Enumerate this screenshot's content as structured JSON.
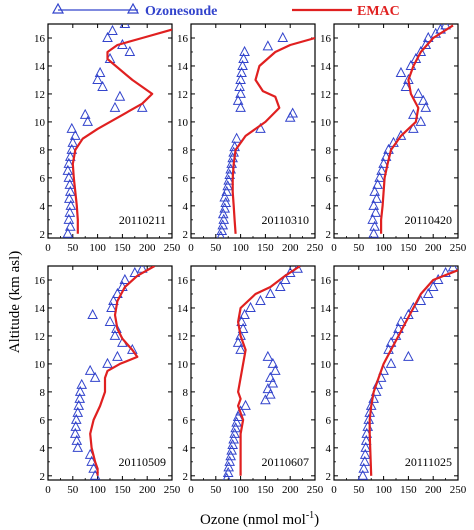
{
  "legend": {
    "ozonesonde_label": "Ozonesonde",
    "emac_label": "EMAC"
  },
  "axes": {
    "ylabel": "Altitude (km asl)",
    "xlabel_main": "Ozone (nmol mol",
    "xlabel_sup": "-1",
    "xlabel_end": ")"
  },
  "colors": {
    "ozonesonde": "#3344cc",
    "emac": "#e02020",
    "axis": "#000000"
  },
  "chart_data": {
    "type": "scatter",
    "layout": "2x3 small multiples",
    "xlim": [
      0,
      250
    ],
    "ylim": [
      1.7,
      17
    ],
    "xticks": [
      0,
      50,
      100,
      150,
      200,
      250
    ],
    "yticks": [
      2,
      4,
      6,
      8,
      10,
      12,
      14,
      16
    ],
    "xlabel": "Ozone (nmol mol-1)",
    "ylabel": "Altitude (km asl)",
    "series_styles": [
      {
        "name": "Ozonesonde",
        "marker": "open-triangle"
      },
      {
        "name": "EMAC",
        "line": "solid"
      }
    ],
    "panels": [
      {
        "label": "20110211",
        "ozonesonde": [
          [
            40,
            2.0
          ],
          [
            45,
            2.5
          ],
          [
            42,
            3.0
          ],
          [
            44,
            3.5
          ],
          [
            46,
            4.0
          ],
          [
            43,
            4.5
          ],
          [
            45,
            5.0
          ],
          [
            44,
            5.5
          ],
          [
            42,
            6.0
          ],
          [
            40,
            6.5
          ],
          [
            42,
            7.0
          ],
          [
            45,
            7.5
          ],
          [
            48,
            8.0
          ],
          [
            50,
            8.5
          ],
          [
            55,
            9.0
          ],
          [
            48,
            9.5
          ],
          [
            80,
            10.0
          ],
          [
            75,
            10.5
          ],
          [
            135,
            11.0
          ],
          [
            190,
            11.0
          ],
          [
            145,
            11.8
          ],
          [
            110,
            12.5
          ],
          [
            100,
            13.0
          ],
          [
            105,
            13.5
          ],
          [
            125,
            14.5
          ],
          [
            165,
            15.0
          ],
          [
            150,
            15.5
          ],
          [
            120,
            16.0
          ],
          [
            130,
            16.5
          ],
          [
            155,
            17.0
          ]
        ],
        "emac": [
          [
            60,
            2.0
          ],
          [
            60,
            3.0
          ],
          [
            58,
            4.0
          ],
          [
            55,
            5.0
          ],
          [
            52,
            6.0
          ],
          [
            50,
            7.0
          ],
          [
            55,
            8.0
          ],
          [
            70,
            8.8
          ],
          [
            100,
            9.5
          ],
          [
            150,
            10.5
          ],
          [
            190,
            11.3
          ],
          [
            210,
            12.0
          ],
          [
            170,
            13.0
          ],
          [
            120,
            14.5
          ],
          [
            120,
            15.0
          ],
          [
            140,
            15.5
          ],
          [
            190,
            16.0
          ],
          [
            250,
            16.6
          ]
        ]
      },
      {
        "label": "20110310",
        "ozonesonde": [
          [
            60,
            1.8
          ],
          [
            62,
            2.2
          ],
          [
            64,
            2.6
          ],
          [
            66,
            3.0
          ],
          [
            65,
            3.4
          ],
          [
            68,
            3.8
          ],
          [
            70,
            4.2
          ],
          [
            68,
            4.6
          ],
          [
            72,
            5.0
          ],
          [
            74,
            5.4
          ],
          [
            76,
            5.8
          ],
          [
            78,
            6.2
          ],
          [
            80,
            6.6
          ],
          [
            82,
            7.0
          ],
          [
            84,
            7.4
          ],
          [
            86,
            7.8
          ],
          [
            88,
            8.2
          ],
          [
            92,
            8.8
          ],
          [
            140,
            9.5
          ],
          [
            200,
            10.3
          ],
          [
            205,
            10.6
          ],
          [
            100,
            11.0
          ],
          [
            95,
            11.5
          ],
          [
            100,
            12.0
          ],
          [
            98,
            12.5
          ],
          [
            100,
            13.0
          ],
          [
            102,
            13.5
          ],
          [
            104,
            14.0
          ],
          [
            106,
            14.5
          ],
          [
            108,
            15.0
          ],
          [
            155,
            15.4
          ],
          [
            185,
            16.0
          ]
        ],
        "emac": [
          [
            90,
            2.0
          ],
          [
            88,
            3.0
          ],
          [
            86,
            4.0
          ],
          [
            84,
            5.0
          ],
          [
            84,
            6.0
          ],
          [
            86,
            7.0
          ],
          [
            90,
            8.0
          ],
          [
            110,
            9.0
          ],
          [
            150,
            10.0
          ],
          [
            178,
            11.0
          ],
          [
            170,
            11.8
          ],
          [
            145,
            12.2
          ],
          [
            130,
            13.0
          ],
          [
            138,
            14.0
          ],
          [
            170,
            15.0
          ],
          [
            200,
            15.5
          ],
          [
            250,
            16.0
          ]
        ]
      },
      {
        "label": "20110420",
        "ozonesonde": [
          [
            80,
            2.0
          ],
          [
            82,
            2.5
          ],
          [
            78,
            3.0
          ],
          [
            84,
            3.5
          ],
          [
            80,
            4.0
          ],
          [
            86,
            4.5
          ],
          [
            82,
            5.0
          ],
          [
            88,
            5.5
          ],
          [
            92,
            6.0
          ],
          [
            96,
            6.5
          ],
          [
            100,
            7.0
          ],
          [
            105,
            7.5
          ],
          [
            110,
            8.0
          ],
          [
            120,
            8.5
          ],
          [
            135,
            9.0
          ],
          [
            160,
            9.5
          ],
          [
            175,
            10.0
          ],
          [
            160,
            10.5
          ],
          [
            185,
            11.0
          ],
          [
            180,
            11.5
          ],
          [
            170,
            12.0
          ],
          [
            145,
            12.5
          ],
          [
            150,
            13.0
          ],
          [
            135,
            13.5
          ],
          [
            155,
            14.0
          ],
          [
            165,
            14.5
          ],
          [
            175,
            15.0
          ],
          [
            185,
            15.5
          ],
          [
            190,
            16.0
          ],
          [
            205,
            16.3
          ],
          [
            215,
            16.6
          ],
          [
            225,
            16.9
          ]
        ],
        "emac": [
          [
            95,
            2.0
          ],
          [
            95,
            3.0
          ],
          [
            98,
            4.0
          ],
          [
            100,
            5.0
          ],
          [
            102,
            6.0
          ],
          [
            108,
            7.0
          ],
          [
            115,
            8.0
          ],
          [
            135,
            9.0
          ],
          [
            165,
            10.0
          ],
          [
            170,
            11.0
          ],
          [
            155,
            12.0
          ],
          [
            150,
            13.0
          ],
          [
            160,
            14.0
          ],
          [
            175,
            15.0
          ],
          [
            200,
            16.0
          ],
          [
            240,
            16.9
          ]
        ]
      },
      {
        "label": "20110509",
        "ozonesonde": [
          [
            95,
            2.0
          ],
          [
            92,
            2.5
          ],
          [
            88,
            3.0
          ],
          [
            85,
            3.5
          ],
          [
            60,
            4.0
          ],
          [
            58,
            4.5
          ],
          [
            55,
            5.0
          ],
          [
            56,
            5.5
          ],
          [
            57,
            6.0
          ],
          [
            60,
            6.5
          ],
          [
            62,
            7.0
          ],
          [
            64,
            7.5
          ],
          [
            65,
            8.0
          ],
          [
            68,
            8.5
          ],
          [
            95,
            9.0
          ],
          [
            85,
            9.5
          ],
          [
            120,
            10.0
          ],
          [
            140,
            10.5
          ],
          [
            170,
            11.0
          ],
          [
            150,
            11.5
          ],
          [
            135,
            12.0
          ],
          [
            138,
            12.5
          ],
          [
            125,
            13.0
          ],
          [
            90,
            13.5
          ],
          [
            128,
            14.0
          ],
          [
            132,
            14.5
          ],
          [
            140,
            15.0
          ],
          [
            150,
            15.5
          ],
          [
            155,
            16.0
          ],
          [
            175,
            16.5
          ],
          [
            190,
            16.8
          ]
        ],
        "emac": [
          [
            100,
            2.0
          ],
          [
            100,
            2.5
          ],
          [
            95,
            3.0
          ],
          [
            88,
            4.0
          ],
          [
            85,
            5.0
          ],
          [
            92,
            6.0
          ],
          [
            105,
            7.0
          ],
          [
            115,
            8.0
          ],
          [
            115,
            9.0
          ],
          [
            120,
            9.5
          ],
          [
            145,
            10.0
          ],
          [
            180,
            10.5
          ],
          [
            170,
            11.0
          ],
          [
            150,
            11.8
          ],
          [
            140,
            12.5
          ],
          [
            135,
            13.5
          ],
          [
            140,
            14.5
          ],
          [
            155,
            15.5
          ],
          [
            180,
            16.3
          ],
          [
            215,
            17.0
          ]
        ]
      },
      {
        "label": "20110607",
        "ozonesonde": [
          [
            72,
            1.8
          ],
          [
            75,
            2.2
          ],
          [
            76,
            2.6
          ],
          [
            78,
            3.0
          ],
          [
            80,
            3.4
          ],
          [
            82,
            3.8
          ],
          [
            84,
            4.2
          ],
          [
            86,
            4.6
          ],
          [
            88,
            5.0
          ],
          [
            90,
            5.4
          ],
          [
            92,
            5.8
          ],
          [
            95,
            6.2
          ],
          [
            100,
            6.6
          ],
          [
            110,
            7.0
          ],
          [
            150,
            7.4
          ],
          [
            160,
            7.8
          ],
          [
            155,
            8.2
          ],
          [
            165,
            8.6
          ],
          [
            160,
            9.0
          ],
          [
            170,
            9.5
          ],
          [
            165,
            10.0
          ],
          [
            155,
            10.5
          ],
          [
            100,
            11.0
          ],
          [
            95,
            11.5
          ],
          [
            100,
            12.0
          ],
          [
            105,
            12.5
          ],
          [
            102,
            13.0
          ],
          [
            108,
            13.5
          ],
          [
            120,
            14.0
          ],
          [
            140,
            14.5
          ],
          [
            160,
            15.0
          ],
          [
            180,
            15.5
          ],
          [
            190,
            16.0
          ],
          [
            200,
            16.5
          ],
          [
            215,
            16.8
          ]
        ],
        "emac": [
          [
            100,
            2.0
          ],
          [
            100,
            3.0
          ],
          [
            100,
            4.0
          ],
          [
            100,
            5.0
          ],
          [
            105,
            6.0
          ],
          [
            100,
            6.5
          ],
          [
            95,
            7.0
          ],
          [
            100,
            7.5
          ],
          [
            95,
            8.0
          ],
          [
            100,
            9.0
          ],
          [
            105,
            10.0
          ],
          [
            110,
            11.0
          ],
          [
            100,
            12.0
          ],
          [
            95,
            13.0
          ],
          [
            100,
            14.0
          ],
          [
            130,
            15.0
          ],
          [
            160,
            15.5
          ],
          [
            190,
            16.3
          ],
          [
            220,
            17.0
          ]
        ]
      },
      {
        "label": "20111025",
        "ozonesonde": [
          [
            58,
            2.0
          ],
          [
            60,
            2.5
          ],
          [
            62,
            3.0
          ],
          [
            63,
            3.5
          ],
          [
            64,
            4.0
          ],
          [
            65,
            4.5
          ],
          [
            66,
            5.0
          ],
          [
            68,
            5.5
          ],
          [
            70,
            6.0
          ],
          [
            72,
            6.5
          ],
          [
            75,
            7.0
          ],
          [
            80,
            7.5
          ],
          [
            85,
            8.0
          ],
          [
            88,
            8.5
          ],
          [
            95,
            9.0
          ],
          [
            100,
            9.5
          ],
          [
            115,
            10.0
          ],
          [
            150,
            10.5
          ],
          [
            110,
            11.0
          ],
          [
            115,
            11.5
          ],
          [
            125,
            12.0
          ],
          [
            130,
            12.5
          ],
          [
            135,
            13.0
          ],
          [
            150,
            13.5
          ],
          [
            160,
            14.0
          ],
          [
            175,
            14.5
          ],
          [
            190,
            15.0
          ],
          [
            200,
            15.5
          ],
          [
            210,
            16.0
          ],
          [
            225,
            16.5
          ],
          [
            240,
            16.9
          ]
        ],
        "emac": [
          [
            75,
            2.0
          ],
          [
            74,
            3.0
          ],
          [
            73,
            4.0
          ],
          [
            72,
            5.0
          ],
          [
            72,
            6.0
          ],
          [
            75,
            7.0
          ],
          [
            80,
            8.0
          ],
          [
            90,
            9.0
          ],
          [
            100,
            10.0
          ],
          [
            115,
            11.0
          ],
          [
            130,
            12.0
          ],
          [
            145,
            13.0
          ],
          [
            160,
            14.0
          ],
          [
            175,
            15.0
          ],
          [
            200,
            16.0
          ],
          [
            250,
            16.7
          ]
        ]
      }
    ]
  }
}
